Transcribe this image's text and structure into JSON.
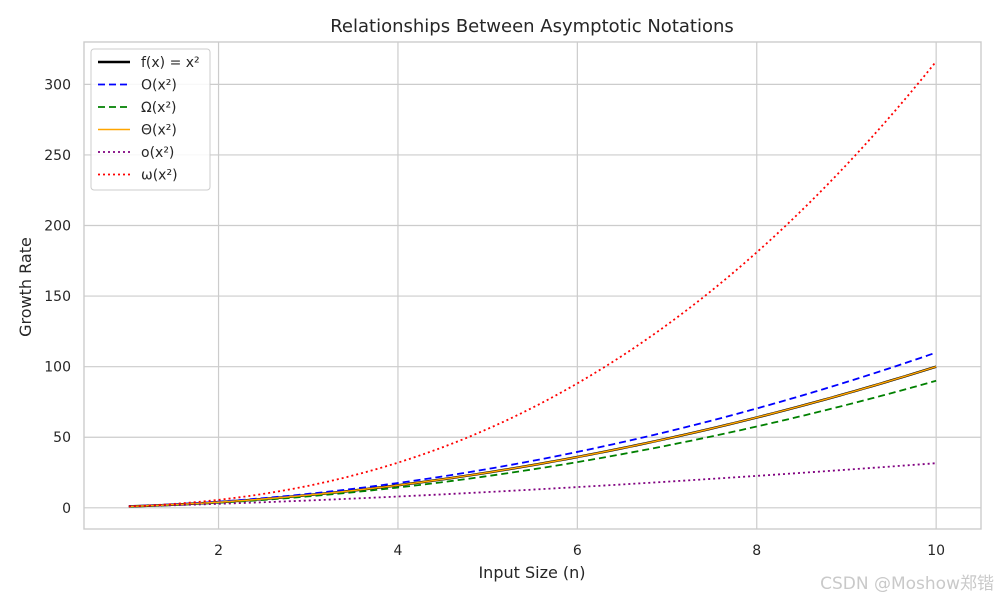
{
  "chart_data": {
    "type": "line",
    "title": "Relationships Between Asymptotic Notations",
    "xlabel": "Input Size (n)",
    "ylabel": "Growth Rate",
    "xlim": [
      0.5,
      10.5
    ],
    "ylim": [
      -15,
      330
    ],
    "xticks": [
      2,
      4,
      6,
      8,
      10
    ],
    "yticks": [
      0,
      50,
      100,
      150,
      200,
      250,
      300
    ],
    "grid": true,
    "legend_position": "top-left",
    "x_range": [
      1,
      10
    ],
    "series": [
      {
        "name": "f(x) = x²",
        "formula": "x^2",
        "color": "#000000",
        "style": "solid",
        "width": 2.5
      },
      {
        "name": "O(x²)",
        "formula": "1.1*x^2",
        "color": "#0000ff",
        "style": "dashed",
        "width": 1.8
      },
      {
        "name": "Ω(x²)",
        "formula": "0.9*x^2",
        "color": "#008000",
        "style": "dashed",
        "width": 1.8
      },
      {
        "name": "Θ(x²)",
        "formula": "x^2",
        "color": "#ffa500",
        "style": "solid",
        "width": 1.5
      },
      {
        "name": "o(x²)",
        "formula": "x^1.5",
        "color": "#800080",
        "style": "dotted",
        "width": 1.8
      },
      {
        "name": "ω(x²)",
        "formula": "x^2.5",
        "color": "#ff0000",
        "style": "dotted",
        "width": 1.8
      }
    ]
  },
  "watermark": "CSDN @Moshow郑锴"
}
